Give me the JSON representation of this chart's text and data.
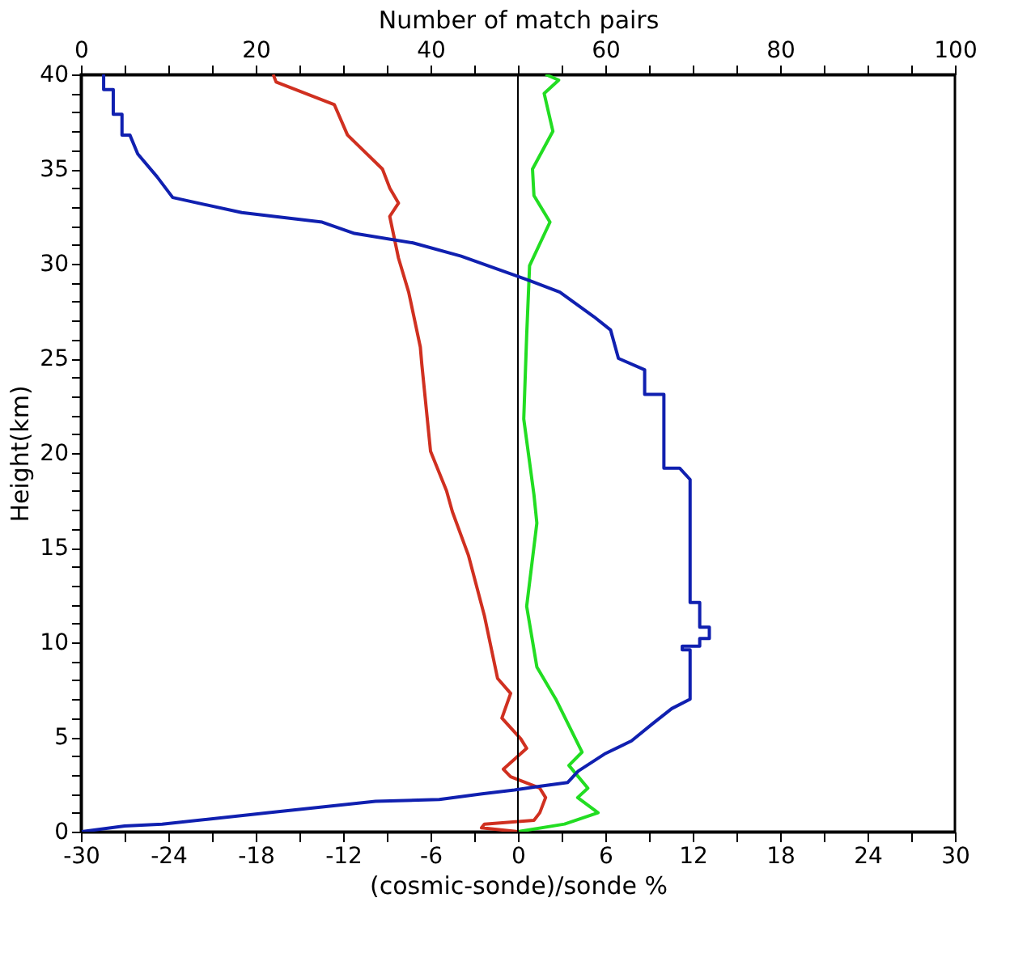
{
  "chart_data": {
    "type": "line",
    "xlabel": "(cosmic-sonde)/sonde %",
    "x2label": "Number of match pairs",
    "ylabel": "Height(km)",
    "xlim": [
      -30,
      30
    ],
    "xticks": [
      -30,
      {
        "value": -27,
        "label": null
      },
      -24,
      {
        "value": -21,
        "label": null
      },
      -18,
      {
        "value": -15,
        "label": null
      },
      -12,
      {
        "value": -9,
        "label": null
      },
      -6,
      {
        "value": -3,
        "label": null
      },
      0,
      {
        "value": 3,
        "label": null
      },
      6,
      {
        "value": 9,
        "label": null
      },
      12,
      {
        "value": 15,
        "label": null
      },
      18,
      {
        "value": 21,
        "label": null
      },
      24,
      {
        "value": 27,
        "label": null
      },
      30
    ],
    "x2lim": [
      0,
      100
    ],
    "x2ticks": [
      0,
      {
        "value": 5,
        "label": null
      },
      {
        "value": 10,
        "label": null
      },
      {
        "value": 15,
        "label": null
      },
      20,
      {
        "value": 25,
        "label": null
      },
      {
        "value": 30,
        "label": null
      },
      {
        "value": 35,
        "label": null
      },
      40,
      {
        "value": 45,
        "label": null
      },
      {
        "value": 50,
        "label": null
      },
      {
        "value": 55,
        "label": null
      },
      60,
      {
        "value": 65,
        "label": null
      },
      {
        "value": 70,
        "label": null
      },
      {
        "value": 75,
        "label": null
      },
      80,
      {
        "value": 85,
        "label": null
      },
      {
        "value": 90,
        "label": null
      },
      {
        "value": 95,
        "label": null
      },
      100
    ],
    "ylim": [
      0,
      40
    ],
    "yticks": [
      0,
      {
        "value": 1,
        "label": null
      },
      {
        "value": 2,
        "label": null
      },
      {
        "value": 3,
        "label": null
      },
      {
        "value": 4,
        "label": null
      },
      5,
      {
        "value": 6,
        "label": null
      },
      {
        "value": 7,
        "label": null
      },
      {
        "value": 8,
        "label": null
      },
      {
        "value": 9,
        "label": null
      },
      10,
      {
        "value": 11,
        "label": null
      },
      {
        "value": 12,
        "label": null
      },
      {
        "value": 13,
        "label": null
      },
      {
        "value": 14,
        "label": null
      },
      15,
      {
        "value": 16,
        "label": null
      },
      {
        "value": 17,
        "label": null
      },
      {
        "value": 18,
        "label": null
      },
      {
        "value": 19,
        "label": null
      },
      20,
      {
        "value": 21,
        "label": null
      },
      {
        "value": 22,
        "label": null
      },
      {
        "value": 23,
        "label": null
      },
      {
        "value": 24,
        "label": null
      },
      25,
      {
        "value": 26,
        "label": null
      },
      {
        "value": 27,
        "label": null
      },
      {
        "value": 28,
        "label": null
      },
      {
        "value": 29,
        "label": null
      },
      30,
      {
        "value": 31,
        "label": null
      },
      {
        "value": 32,
        "label": null
      },
      {
        "value": 33,
        "label": null
      },
      {
        "value": 34,
        "label": null
      },
      35,
      {
        "value": 36,
        "label": null
      },
      {
        "value": 37,
        "label": null
      },
      {
        "value": 38,
        "label": null
      },
      {
        "value": 39,
        "label": null
      },
      40
    ],
    "grid": false,
    "marker": "none",
    "line_style": "solid",
    "ref_lines": [
      {
        "axis": "x",
        "value": 0,
        "color": "#000000",
        "line_style": "solid"
      }
    ],
    "series": [
      {
        "color": "#d03020",
        "x": [
          -16.8,
          -16.6,
          -12.6,
          -11.7,
          -9.3,
          -8.8,
          -8.2,
          -8.8,
          -8.2,
          -7.5,
          -6.7,
          -6.6,
          -6.0,
          -4.9,
          -4.5,
          -3.4,
          -2.3,
          -1.4,
          -0.5,
          -1.1,
          0.2,
          0.6,
          -1.0,
          -0.5,
          1.5,
          1.9,
          1.5,
          1.1,
          -2.3,
          -2.5,
          0.0
        ],
        "values": [
          40,
          39.6,
          38.4,
          36.8,
          35.0,
          34.0,
          33.2,
          32.5,
          30.3,
          28.5,
          25.6,
          24.7,
          20.1,
          18.0,
          16.9,
          14.6,
          11.4,
          8.1,
          7.3,
          6.0,
          4.9,
          4.4,
          3.3,
          2.9,
          2.3,
          1.8,
          1.0,
          0.6,
          0.4,
          0.2,
          0.0
        ]
      },
      {
        "color": "#22dd22",
        "x": [
          1.9,
          2.8,
          1.8,
          2.4,
          1.0,
          1.1,
          2.2,
          0.8,
          0.6,
          0.4,
          1.1,
          1.3,
          0.6,
          1.3,
          2.6,
          4.4,
          3.5,
          4.8,
          4.1,
          5.5,
          3.2,
          0.0
        ],
        "values": [
          40,
          39.7,
          39.0,
          37.0,
          35.0,
          33.6,
          32.2,
          29.9,
          26.2,
          21.8,
          17.8,
          16.3,
          11.9,
          8.7,
          7.0,
          4.2,
          3.5,
          2.3,
          1.8,
          1.0,
          0.4,
          0.0
        ]
      },
      {
        "color": "#1020b0",
        "axis": "x2",
        "x": [
          2.6,
          2.6,
          3.7,
          3.7,
          4.7,
          4.7,
          5.6,
          6.5,
          8.7,
          10.5,
          18.4,
          22.1,
          27.6,
          31.3,
          38.0,
          43.5,
          49.6,
          51.4,
          54.8,
          58.7,
          60.6,
          61.5,
          64.5,
          64.5,
          66.7,
          66.7,
          68.5,
          69.7,
          69.7,
          70.8,
          70.8,
          71.9,
          71.9,
          70.8,
          70.8,
          68.8,
          68.8,
          69.7,
          69.7,
          67.6,
          65.4,
          63.0,
          59.9,
          56.9,
          55.7,
          52.6,
          49.6,
          45.9,
          41.0,
          33.7,
          21.5,
          9.3,
          5.0,
          0.1
        ],
        "values": [
          40,
          39.2,
          39.2,
          37.9,
          37.9,
          36.8,
          36.8,
          35.8,
          34.6,
          33.5,
          32.7,
          32.5,
          32.2,
          31.6,
          31.1,
          30.4,
          29.4,
          29.1,
          28.5,
          27.2,
          26.5,
          25.0,
          24.4,
          23.1,
          23.1,
          19.2,
          19.2,
          18.6,
          12.1,
          12.1,
          10.8,
          10.8,
          10.2,
          10.2,
          9.8,
          9.8,
          9.6,
          9.6,
          7.0,
          6.5,
          5.7,
          4.8,
          4.1,
          3.2,
          2.6,
          2.4,
          2.2,
          2.0,
          1.7,
          1.6,
          1.0,
          0.4,
          0.3,
          0.0
        ]
      }
    ]
  }
}
